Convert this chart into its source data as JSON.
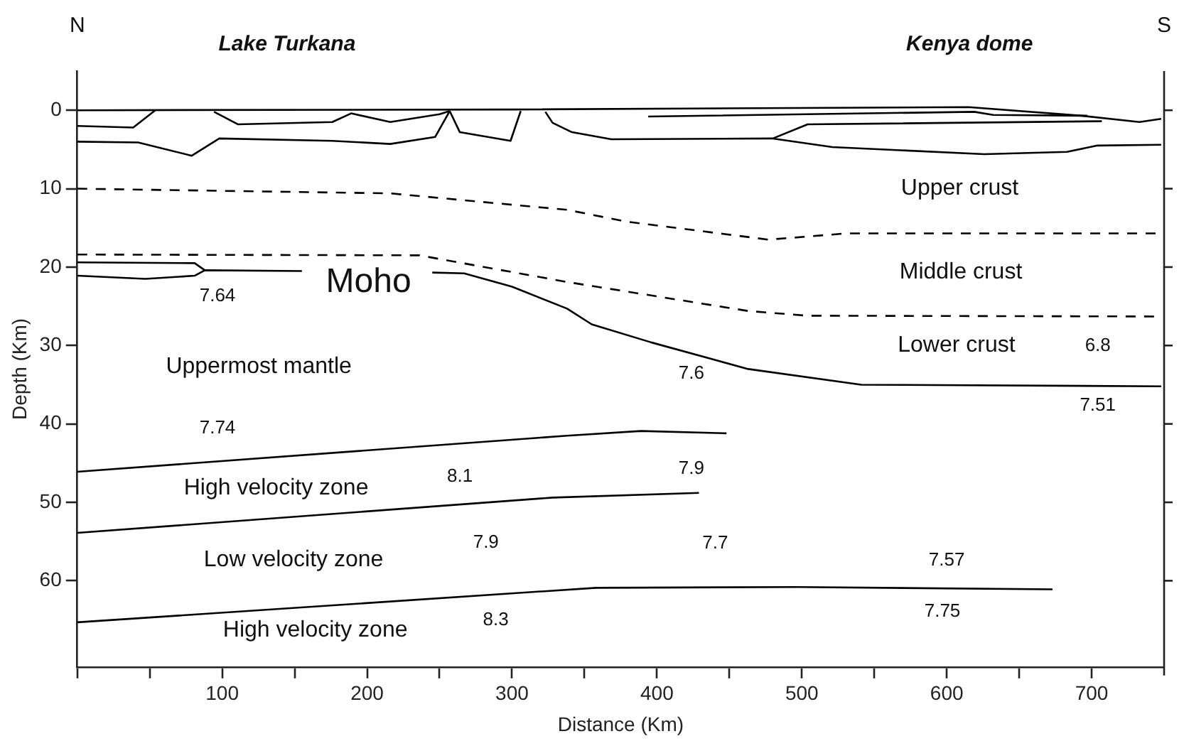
{
  "chart_data": {
    "type": "line",
    "xlabel": "Distance (Km)",
    "ylabel": "Depth (Km)",
    "xlim": [
      0,
      750
    ],
    "ylim": [
      71,
      -5
    ],
    "xticks": [
      {
        "value": 0,
        "label": null
      },
      {
        "value": 50,
        "label": null
      },
      100,
      {
        "value": 150,
        "label": null
      },
      200,
      {
        "value": 250,
        "label": null
      },
      300,
      {
        "value": 350,
        "label": null
      },
      400,
      {
        "value": 450,
        "label": null
      },
      500,
      {
        "value": 550,
        "label": null
      },
      600,
      {
        "value": 650,
        "label": null
      },
      700
    ],
    "yticks": [
      0,
      10,
      20,
      30,
      40,
      50,
      60
    ],
    "grid": false,
    "legend": false,
    "marker": "none",
    "series": [
      {
        "color": "#000000",
        "x": [
          0,
          300,
          615,
          693,
          733,
          748
        ],
        "values": [
          0,
          -0.1,
          -0.4,
          0.7,
          1.5,
          1.1
        ]
      },
      {
        "color": "#000000",
        "x": [
          0,
          38.6,
          53.8
        ],
        "values": [
          2.0,
          2.2,
          0
        ]
      },
      {
        "color": "#000000",
        "x": [
          0,
          42,
          79,
          98,
          176,
          216,
          247,
          257
        ],
        "values": [
          4.0,
          4.1,
          5.8,
          3.6,
          3.9,
          4.3,
          3.4,
          0.1
        ]
      },
      {
        "color": "#000000",
        "x": [
          94.4,
          111,
          176,
          189,
          216,
          250,
          257
        ],
        "values": [
          0.2,
          1.8,
          1.5,
          0.4,
          1.5,
          0.5,
          0.1
        ]
      },
      {
        "color": "#000000",
        "x": [
          257,
          264,
          299,
          306
        ],
        "values": [
          0.1,
          2.8,
          3.9,
          0.1
        ]
      },
      {
        "color": "#000000",
        "x": [
          323,
          328,
          341.4,
          368.5,
          480,
          504,
          707
        ],
        "values": [
          0.2,
          1.6,
          2.8,
          3.7,
          3.6,
          1.8,
          1.4
        ]
      },
      {
        "color": "#000000",
        "x": [
          480,
          521,
          626,
          683,
          704,
          748
        ],
        "values": [
          3.6,
          4.7,
          5.6,
          5.3,
          4.5,
          4.4
        ]
      },
      {
        "color": "#000000",
        "x": [
          394,
          619,
          632,
          697
        ],
        "values": [
          0.8,
          0.2,
          0.6,
          0.7
        ]
      },
      {
        "color": "#000000",
        "line_style": "dashed",
        "x": [
          0,
          216,
          338,
          379,
          477,
          531,
          748
        ],
        "values": [
          10,
          10.6,
          12.7,
          14.2,
          16.5,
          15.7,
          15.7
        ]
      },
      {
        "color": "#000000",
        "line_style": "dashed",
        "x": [
          0,
          236,
          338,
          463,
          504,
          748
        ],
        "values": [
          18.4,
          18.5,
          21.9,
          25.6,
          26.2,
          26.3
        ]
      },
      {
        "color": "#000000",
        "x": [
          0,
          81,
          88
        ],
        "values": [
          19.4,
          19.5,
          20.4
        ]
      },
      {
        "color": "#000000",
        "x": [
          0,
          47,
          81,
          88,
          155
        ],
        "values": [
          21.1,
          21.5,
          21.1,
          20.4,
          20.5
        ]
      },
      {
        "color": "#000000",
        "x": [
          245,
          267,
          300,
          338,
          355,
          396,
          463,
          541,
          748
        ],
        "values": [
          20.7,
          20.8,
          22.5,
          25.3,
          27.3,
          29.6,
          33.0,
          35.0,
          35.2
        ]
      },
      {
        "color": "#000000",
        "x": [
          0,
          338,
          389,
          448
        ],
        "values": [
          46.1,
          41.5,
          40.9,
          41.2
        ]
      },
      {
        "color": "#000000",
        "x": [
          0,
          328,
          429
        ],
        "values": [
          53.9,
          49.4,
          48.8
        ]
      },
      {
        "color": "#000000",
        "x": [
          0,
          358,
          497,
          673
        ],
        "values": [
          65.3,
          60.9,
          60.8,
          61.1
        ]
      }
    ],
    "annotations": [
      "N",
      "Lake Turkana",
      "Kenya dome",
      "S",
      "Moho",
      "7.64",
      "Upper crust",
      "Middle crust",
      "Lower crust",
      "6.8",
      "7.6",
      "7.51",
      "Uppermost mantle",
      "7.74",
      "High velocity zone",
      "8.1",
      "7.9",
      "Low velocity zone",
      "7.9",
      "7.7",
      "7.57",
      "High velocity zone",
      "8.3",
      "7.75"
    ]
  }
}
